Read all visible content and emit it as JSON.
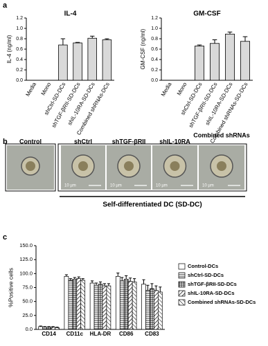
{
  "panel_labels": [
    "a",
    "b",
    "c"
  ],
  "chart_data": [
    {
      "type": "bar",
      "title": "IL-4",
      "ylabel": "IL-4 (ng/ml)",
      "categories": [
        "Media",
        "Mono",
        "shCtrl-SD-DCs",
        "shTGF-βRII-SD-DCs",
        "shIL-10RA-SD-DCs",
        "Combined shRNAs-DCs"
      ],
      "values": [
        0,
        0,
        0.68,
        0.72,
        0.81,
        0.78
      ],
      "errors": [
        0,
        0,
        0.12,
        0.01,
        0.04,
        0.02
      ],
      "color": "#d9d9d9",
      "ylim": [
        0,
        1.2
      ],
      "yticks": [
        {
          "value": 0,
          "label": "0.0"
        },
        {
          "value": 0.2,
          "label": "0.2"
        },
        {
          "value": 0.4,
          "label": "0.4"
        },
        {
          "value": 0.6,
          "label": "0.6"
        },
        {
          "value": 0.8,
          "label": "0.8"
        },
        {
          "value": 1.0,
          "label": "1.0"
        },
        {
          "value": 1.2,
          "label": "1.2"
        }
      ]
    },
    {
      "type": "bar",
      "title": "GM-CSF",
      "ylabel": "GM-CSF (ng/ml)",
      "categories": [
        "Media",
        "Mono",
        "shCtrl-SD-DCs",
        "shTGF-βRII-SD-DCs",
        "shIL-10RA-SD-DCs",
        "Combined shRNAs-SD-DCs"
      ],
      "values": [
        0,
        0,
        0.66,
        0.71,
        0.89,
        0.75
      ],
      "errors": [
        0,
        0,
        0.02,
        0.07,
        0.04,
        0.09
      ],
      "color": "#d9d9d9",
      "ylim": [
        0,
        1.2
      ],
      "yticks": [
        {
          "value": 0,
          "label": "0.0"
        },
        {
          "value": 0.2,
          "label": "0.2"
        },
        {
          "value": 0.4,
          "label": "0.4"
        },
        {
          "value": 0.6,
          "label": "0.6"
        },
        {
          "value": 0.8,
          "label": "0.8"
        },
        {
          "value": 1.0,
          "label": "1.0"
        },
        {
          "value": 1.2,
          "label": "1.2"
        }
      ]
    },
    {
      "type": "grouped_bar",
      "ylabel": "%Positive cells",
      "categories": [
        "CD14",
        "CD11c",
        "HLA-DR",
        "CD86",
        "CD83"
      ],
      "series": [
        {
          "name": "Control-DCs",
          "color": "#ffffff",
          "values": [
            5,
            95,
            83,
            95,
            81
          ],
          "errors": [
            1,
            3,
            4,
            6,
            8
          ]
        },
        {
          "name": "shCtrl-SD-DCs",
          "color": "#ffffff",
          "values": [
            4,
            88,
            79,
            87,
            70
          ],
          "errors": [
            1,
            3,
            4,
            6,
            9
          ]
        },
        {
          "name": "shTGF-βRII-SD-DCs",
          "color": "#ffffff",
          "values": [
            4,
            90,
            81,
            90,
            73
          ],
          "errors": [
            1,
            3,
            4,
            6,
            9
          ]
        },
        {
          "name": "shIL-10RA-SD-DCs",
          "color": "#ffffff",
          "values": [
            4,
            91,
            78,
            86,
            70
          ],
          "errors": [
            1,
            3,
            4,
            6,
            8
          ]
        },
        {
          "name": "Combined shRNAs-SD-DCs",
          "color": "#ffffff",
          "values": [
            3,
            88,
            78,
            85,
            67
          ],
          "errors": [
            1,
            3,
            4,
            6,
            9
          ]
        }
      ],
      "ylim": [
        0,
        150
      ],
      "yticks": [
        {
          "value": 0,
          "label": "0.0"
        },
        {
          "value": 25,
          "label": "25.0"
        },
        {
          "value": 50,
          "label": "50.0"
        },
        {
          "value": 75,
          "label": "75.0"
        },
        {
          "value": 100,
          "label": "100.0"
        },
        {
          "value": 125,
          "label": "125.0"
        },
        {
          "value": 150,
          "label": "150.0"
        }
      ]
    }
  ],
  "micrographs": {
    "labels": [
      "Control",
      "shCtrl",
      "shTGF-βRII",
      "shIL-10RA",
      "Combined shRNAs"
    ],
    "scale_bar": "10 µm",
    "caption": "Self-differentiated DC (SD-DC)"
  }
}
